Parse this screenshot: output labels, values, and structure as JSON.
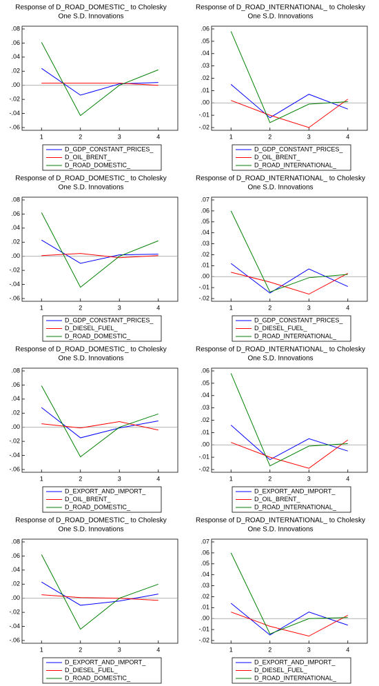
{
  "chart_data": [
    {
      "type": "line",
      "title": "Response of D_ROAD_DOMESTIC_ to Cholesky",
      "subtitle": "One S.D. Innovations",
      "x": [
        1,
        2,
        3,
        4
      ],
      "xlim": [
        0.5,
        4.5
      ],
      "xticks": [
        1,
        2,
        3,
        4
      ],
      "ylim": [
        -0.06,
        0.08
      ],
      "yticks": [
        {
          "value": 0.08,
          "label": ".08"
        },
        {
          "value": 0.06,
          "label": ".06"
        },
        {
          "value": 0.04,
          "label": ".04"
        },
        {
          "value": 0.02,
          "label": ".02"
        },
        {
          "value": 0,
          "label": ".00"
        },
        {
          "value": -0.02,
          "label": "-.02"
        },
        {
          "value": -0.04,
          "label": "-.04"
        },
        {
          "value": -0.06,
          "label": "-.06"
        }
      ],
      "series": [
        {
          "name": "D_GDP_CONSTANT_PRICES_",
          "color": "#0000ff",
          "values": [
            0.024,
            -0.014,
            0.002,
            0.004
          ]
        },
        {
          "name": "D_OIL_BRENT_",
          "color": "#ff0000",
          "values": [
            0.003,
            0.003,
            0.003,
            0.0
          ]
        },
        {
          "name": "D_ROAD_DOMESTIC_",
          "color": "#008000",
          "values": [
            0.061,
            -0.043,
            0.0,
            0.022
          ]
        }
      ]
    },
    {
      "type": "line",
      "title": "Response of D_ROAD_INTERNATIONAL_ to Cholesky",
      "subtitle": "One S.D. Innovations",
      "x": [
        1,
        2,
        3,
        4
      ],
      "xlim": [
        0.5,
        4.5
      ],
      "xticks": [
        1,
        2,
        3,
        4
      ],
      "ylim": [
        -0.02,
        0.06
      ],
      "yticks": [
        {
          "value": 0.06,
          "label": ".06"
        },
        {
          "value": 0.05,
          "label": ".05"
        },
        {
          "value": 0.04,
          "label": ".04"
        },
        {
          "value": 0.03,
          "label": ".03"
        },
        {
          "value": 0.02,
          "label": ".02"
        },
        {
          "value": 0.01,
          "label": ".01"
        },
        {
          "value": 0,
          "label": ".00"
        },
        {
          "value": -0.01,
          "label": "-.01"
        },
        {
          "value": -0.02,
          "label": "-.02"
        }
      ],
      "series": [
        {
          "name": "D_GDP_CONSTANT_PRICES_",
          "color": "#0000ff",
          "values": [
            0.015,
            -0.012,
            0.007,
            -0.005
          ]
        },
        {
          "name": "D_OIL_BRENT_",
          "color": "#ff0000",
          "values": [
            0.002,
            -0.01,
            -0.02,
            0.003
          ]
        },
        {
          "name": "D_ROAD_INTERNATIONAL_",
          "color": "#008000",
          "values": [
            0.058,
            -0.016,
            -0.001,
            0.001
          ]
        }
      ]
    },
    {
      "type": "line",
      "title": "Response of D_ROAD_DOMESTIC_ to Cholesky",
      "subtitle": "One S.D. Innovations",
      "x": [
        1,
        2,
        3,
        4
      ],
      "xlim": [
        0.5,
        4.5
      ],
      "xticks": [
        1,
        2,
        3,
        4
      ],
      "ylim": [
        -0.06,
        0.08
      ],
      "yticks": [
        {
          "value": 0.08,
          "label": ".08"
        },
        {
          "value": 0.06,
          "label": ".06"
        },
        {
          "value": 0.04,
          "label": ".04"
        },
        {
          "value": 0.02,
          "label": ".02"
        },
        {
          "value": 0,
          "label": ".00"
        },
        {
          "value": -0.02,
          "label": "-.02"
        },
        {
          "value": -0.04,
          "label": "-.04"
        },
        {
          "value": -0.06,
          "label": "-.06"
        }
      ],
      "series": [
        {
          "name": "D_GDP_CONSTANT_PRICES_",
          "color": "#0000ff",
          "values": [
            0.023,
            -0.01,
            0.002,
            0.003
          ]
        },
        {
          "name": "D_DIESEL_FUEL_",
          "color": "#ff0000",
          "values": [
            0.001,
            0.004,
            -0.002,
            0.001
          ]
        },
        {
          "name": "D_ROAD_DOMESTIC_",
          "color": "#008000",
          "values": [
            0.062,
            -0.044,
            0.0,
            0.022
          ]
        }
      ]
    },
    {
      "type": "line",
      "title": "Response of D_ROAD_INTERNATIONAL_ to Cholesky",
      "subtitle": "One S.D. Innovations",
      "x": [
        1,
        2,
        3,
        4
      ],
      "xlim": [
        0.5,
        4.5
      ],
      "xticks": [
        1,
        2,
        3,
        4
      ],
      "ylim": [
        -0.02,
        0.07
      ],
      "yticks": [
        {
          "value": 0.07,
          "label": ".07"
        },
        {
          "value": 0.06,
          "label": ".06"
        },
        {
          "value": 0.05,
          "label": ".05"
        },
        {
          "value": 0.04,
          "label": ".04"
        },
        {
          "value": 0.03,
          "label": ".03"
        },
        {
          "value": 0.02,
          "label": ".02"
        },
        {
          "value": 0.01,
          "label": ".01"
        },
        {
          "value": 0,
          "label": ".00"
        },
        {
          "value": -0.01,
          "label": "-.01"
        },
        {
          "value": -0.02,
          "label": "-.02"
        }
      ],
      "series": [
        {
          "name": "D_GDP_CONSTANT_PRICES_",
          "color": "#0000ff",
          "values": [
            0.012,
            -0.015,
            0.007,
            -0.009
          ]
        },
        {
          "name": "D_DIESEL_FUEL_",
          "color": "#ff0000",
          "values": [
            0.004,
            -0.005,
            -0.016,
            0.003
          ]
        },
        {
          "name": "D_ROAD_INTERNATIONAL_",
          "color": "#008000",
          "values": [
            0.06,
            -0.014,
            -0.001,
            0.002
          ]
        }
      ]
    },
    {
      "type": "line",
      "title": "Response of D_ROAD_DOMESTIC_ to Cholesky",
      "subtitle": "One S.D. Innovations",
      "x": [
        1,
        2,
        3,
        4
      ],
      "xlim": [
        0.5,
        4.5
      ],
      "xticks": [
        1,
        2,
        3,
        4
      ],
      "ylim": [
        -0.06,
        0.08
      ],
      "yticks": [
        {
          "value": 0.08,
          "label": ".08"
        },
        {
          "value": 0.06,
          "label": ".06"
        },
        {
          "value": 0.04,
          "label": ".04"
        },
        {
          "value": 0.02,
          "label": ".02"
        },
        {
          "value": 0,
          "label": ".00"
        },
        {
          "value": -0.02,
          "label": "-.02"
        },
        {
          "value": -0.04,
          "label": "-.04"
        },
        {
          "value": -0.06,
          "label": "-.06"
        }
      ],
      "series": [
        {
          "name": "D_EXPORT_AND_IMPORT_",
          "color": "#0000ff",
          "values": [
            0.028,
            -0.015,
            -0.001,
            0.009
          ]
        },
        {
          "name": "D_OIL_BRENT_",
          "color": "#ff0000",
          "values": [
            0.005,
            -0.001,
            0.008,
            -0.004
          ]
        },
        {
          "name": "D_ROAD_DOMESTIC_",
          "color": "#008000",
          "values": [
            0.059,
            -0.042,
            0.0,
            0.019
          ]
        }
      ]
    },
    {
      "type": "line",
      "title": "Response of D_ROAD_INTERNATIONAL_ to Cholesky",
      "subtitle": "One S.D. Innovations",
      "x": [
        1,
        2,
        3,
        4
      ],
      "xlim": [
        0.5,
        4.5
      ],
      "xticks": [
        1,
        2,
        3,
        4
      ],
      "ylim": [
        -0.02,
        0.06
      ],
      "yticks": [
        {
          "value": 0.06,
          "label": ".06"
        },
        {
          "value": 0.05,
          "label": ".05"
        },
        {
          "value": 0.04,
          "label": ".04"
        },
        {
          "value": 0.03,
          "label": ".03"
        },
        {
          "value": 0.02,
          "label": ".02"
        },
        {
          "value": 0.01,
          "label": ".01"
        },
        {
          "value": 0,
          "label": ".00"
        },
        {
          "value": -0.01,
          "label": "-.01"
        },
        {
          "value": -0.02,
          "label": "-.02"
        }
      ],
      "series": [
        {
          "name": "D_EXPORT_AND_IMPORT_",
          "color": "#0000ff",
          "values": [
            0.016,
            -0.012,
            0.005,
            -0.005
          ]
        },
        {
          "name": "D_OIL_BRENT_",
          "color": "#ff0000",
          "values": [
            0.002,
            -0.01,
            -0.019,
            0.004
          ]
        },
        {
          "name": "D_ROAD_INTERNATIONAL_",
          "color": "#008000",
          "values": [
            0.058,
            -0.017,
            -0.001,
            0.001
          ]
        }
      ]
    },
    {
      "type": "line",
      "title": "Response of D_ROAD_DOMESTIC_ to Cholesky",
      "subtitle": "One S.D. Innovations",
      "x": [
        1,
        2,
        3,
        4
      ],
      "xlim": [
        0.5,
        4.5
      ],
      "xticks": [
        1,
        2,
        3,
        4
      ],
      "ylim": [
        -0.06,
        0.08
      ],
      "yticks": [
        {
          "value": 0.08,
          "label": ".08"
        },
        {
          "value": 0.06,
          "label": ".06"
        },
        {
          "value": 0.04,
          "label": ".04"
        },
        {
          "value": 0.02,
          "label": ".02"
        },
        {
          "value": 0,
          "label": ".00"
        },
        {
          "value": -0.02,
          "label": "-.02"
        },
        {
          "value": -0.04,
          "label": "-.04"
        },
        {
          "value": -0.06,
          "label": "-.06"
        }
      ],
      "series": [
        {
          "name": "D_EXPORT_AND_IMPORT_",
          "color": "#0000ff",
          "values": [
            0.023,
            -0.01,
            -0.004,
            0.006
          ]
        },
        {
          "name": "D_DIESEL_FUEL_",
          "color": "#ff0000",
          "values": [
            0.005,
            0.001,
            0.0,
            -0.003
          ]
        },
        {
          "name": "D_ROAD_DOMESTIC_",
          "color": "#008000",
          "values": [
            0.062,
            -0.044,
            0.0,
            0.02
          ]
        }
      ]
    },
    {
      "type": "line",
      "title": "Response of D_ROAD_INTERNATIONAL_ to Cholesky",
      "subtitle": "One S.D. Innovations",
      "x": [
        1,
        2,
        3,
        4
      ],
      "xlim": [
        0.5,
        4.5
      ],
      "xticks": [
        1,
        2,
        3,
        4
      ],
      "ylim": [
        -0.02,
        0.07
      ],
      "yticks": [
        {
          "value": 0.07,
          "label": ".07"
        },
        {
          "value": 0.06,
          "label": ".06"
        },
        {
          "value": 0.05,
          "label": ".05"
        },
        {
          "value": 0.04,
          "label": ".04"
        },
        {
          "value": 0.03,
          "label": ".03"
        },
        {
          "value": 0.02,
          "label": ".02"
        },
        {
          "value": 0.01,
          "label": ".01"
        },
        {
          "value": 0,
          "label": ".00"
        },
        {
          "value": -0.01,
          "label": "-.01"
        },
        {
          "value": -0.02,
          "label": "-.02"
        }
      ],
      "series": [
        {
          "name": "D_EXPORT_AND_IMPORT_",
          "color": "#0000ff",
          "values": [
            0.014,
            -0.015,
            0.006,
            -0.006
          ]
        },
        {
          "name": "D_DIESEL_FUEL_",
          "color": "#ff0000",
          "values": [
            0.006,
            -0.007,
            -0.016,
            0.003
          ]
        },
        {
          "name": "D_ROAD_INTERNATIONAL_",
          "color": "#008000",
          "values": [
            0.06,
            -0.014,
            0.0,
            0.001
          ]
        }
      ]
    }
  ]
}
